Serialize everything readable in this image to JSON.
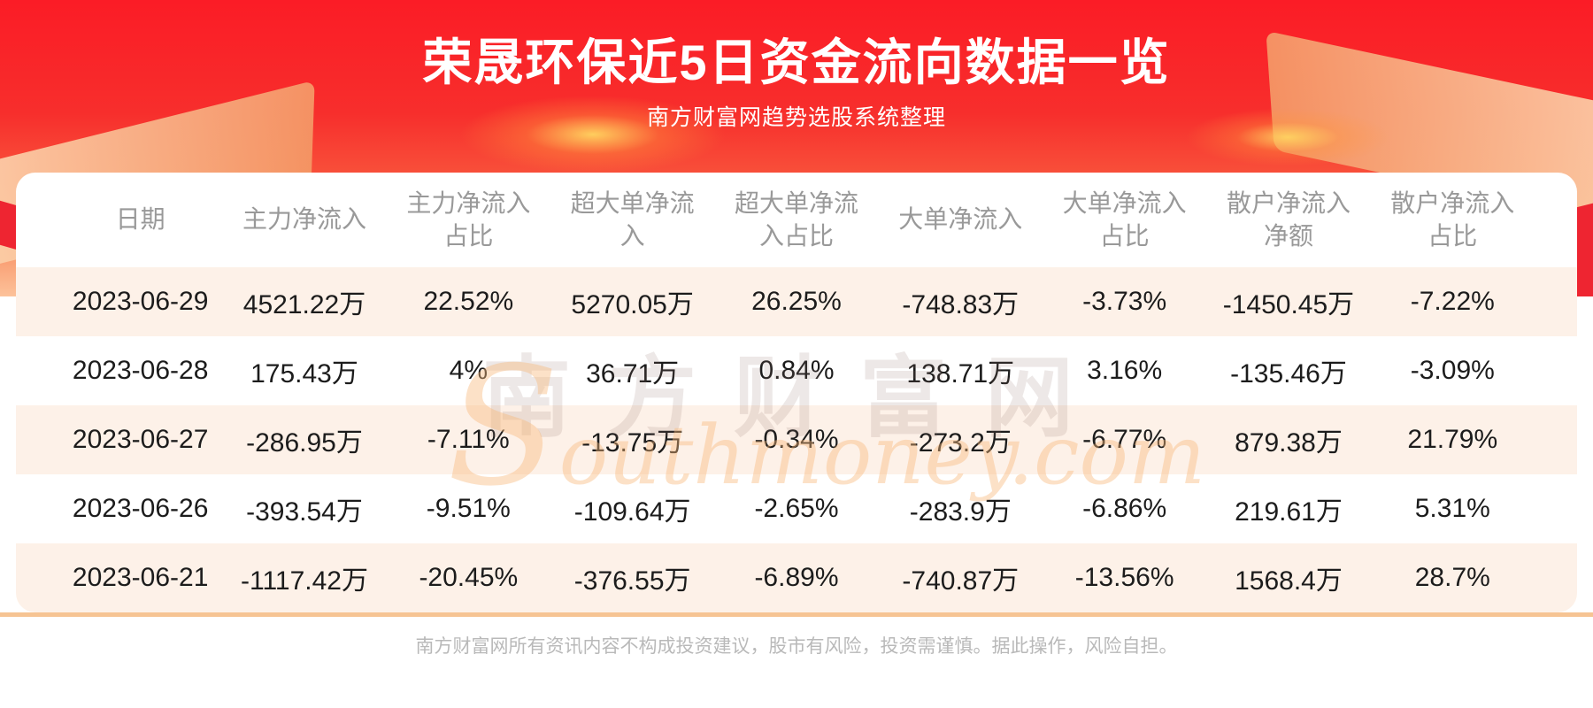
{
  "header": {
    "title": "荣晟环保近5日资金流向数据一览",
    "subtitle": "南方财富网趋势选股系统整理"
  },
  "chart_data": {
    "type": "table",
    "title": "荣晟环保近5日资金流向数据一览",
    "columns": [
      "日期",
      "主力净流入",
      "主力净流入占比",
      "超大单净流入",
      "超大单净流入占比",
      "大单净流入",
      "大单净流入占比",
      "散户净流入净额",
      "散户净流入占比"
    ],
    "column_display": [
      "日期",
      "主力净流入",
      "主力净流入\n占比",
      "超大单净流\n入",
      "超大单净流\n入占比",
      "大单净流入",
      "大单净流入\n占比",
      "散户净流入\n净额",
      "散户净流入\n占比"
    ],
    "rows": [
      [
        "2023-06-29",
        "4521.22万",
        "22.52%",
        "5270.05万",
        "26.25%",
        "-748.83万",
        "-3.73%",
        "-1450.45万",
        "-7.22%"
      ],
      [
        "2023-06-28",
        "175.43万",
        "4%",
        "36.71万",
        "0.84%",
        "138.71万",
        "3.16%",
        "-135.46万",
        "-3.09%"
      ],
      [
        "2023-06-27",
        "-286.95万",
        "-7.11%",
        "-13.75万",
        "-0.34%",
        "-273.2万",
        "-6.77%",
        "879.38万",
        "21.79%"
      ],
      [
        "2023-06-26",
        "-393.54万",
        "-9.51%",
        "-109.64万",
        "-2.65%",
        "-283.9万",
        "-6.86%",
        "219.61万",
        "5.31%"
      ],
      [
        "2023-06-21",
        "-1117.42万",
        "-20.45%",
        "-376.55万",
        "-6.89%",
        "-740.87万",
        "-13.56%",
        "1568.4万",
        "28.7%"
      ]
    ]
  },
  "watermark": {
    "cn": "南方财富网",
    "en": "Southmoney.com"
  },
  "footer": {
    "disclaimer": "南方财富网所有资讯内容不构成投资建议，股市有风险，投资需谨慎。据此操作，风险自担。"
  },
  "colors": {
    "banner_red": "#f92b2b",
    "stripe": "#fdf1e8",
    "divider_orange": "#f6c493",
    "header_gray": "#999999",
    "data_text": "#1c1c1c"
  }
}
